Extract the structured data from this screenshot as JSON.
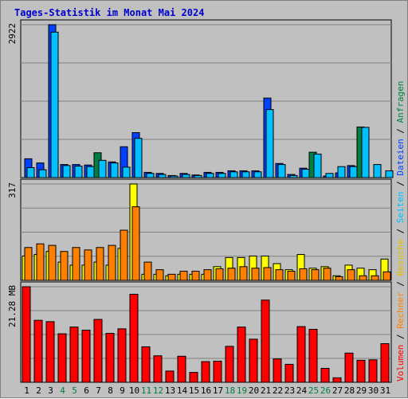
{
  "chart_data": {
    "type": "bar",
    "title": "Tages-Statistik im Monat Mai 2024",
    "x": [
      "1",
      "2",
      "3",
      "4",
      "5",
      "6",
      "7",
      "8",
      "9",
      "10",
      "11",
      "12",
      "13",
      "14",
      "15",
      "16",
      "17",
      "18",
      "19",
      "20",
      "21",
      "22",
      "23",
      "24",
      "25",
      "26",
      "27",
      "28",
      "29",
      "30",
      "31"
    ],
    "weekend_days": [
      "4",
      "5",
      "11",
      "12",
      "18",
      "19",
      "25",
      "26"
    ],
    "panels": [
      {
        "id": "top",
        "ymax_label": "2922",
        "ymax": 2922,
        "series": [
          {
            "name": "Anfragen",
            "color": "#008040",
            "values": [
              0,
              0,
              0,
              0,
              0,
              0,
              475,
              0,
              0,
              0,
              0,
              0,
              0,
              0,
              0,
              0,
              0,
              0,
              0,
              0,
              0,
              0,
              0,
              0,
              485,
              0,
              0,
              0,
              967,
              0,
              0
            ]
          },
          {
            "name": "Dateien",
            "color": "#0040ff",
            "values": [
              360,
              280,
              2922,
              250,
              250,
              240,
              0,
              300,
              590,
              860,
              100,
              80,
              40,
              80,
              50,
              100,
              100,
              130,
              130,
              130,
              1520,
              270,
              60,
              180,
              0,
              30,
              90,
              230,
              0,
              0,
              0
            ]
          },
          {
            "name": "Seiten",
            "color": "#00c0ff",
            "values": [
              190,
              150,
              2780,
              230,
              220,
              210,
              330,
              280,
              200,
              750,
              80,
              60,
              30,
              60,
              40,
              80,
              80,
              110,
              110,
              110,
              1300,
              250,
              40,
              160,
              450,
              80,
              210,
              210,
              960,
              250,
              130
            ]
          }
        ]
      },
      {
        "id": "middle",
        "ymax_label": "317",
        "ymax": 317,
        "series": [
          {
            "name": "Besuche",
            "color": "#ffff00",
            "values": [
              80,
              85,
              95,
              60,
              50,
              50,
              60,
              50,
              105,
              317,
              20,
              20,
              15,
              20,
              20,
              20,
              45,
              75,
              75,
              80,
              80,
              55,
              35,
              85,
              40,
              45,
              15,
              50,
              40,
              35,
              70
            ]
          },
          {
            "name": "Rechner",
            "color": "#ff8000",
            "values": [
              108,
              120,
              115,
              95,
              108,
              100,
              108,
              115,
              165,
              242,
              60,
              35,
              20,
              30,
              30,
              35,
              38,
              40,
              45,
              40,
              42,
              35,
              30,
              38,
              35,
              40,
              12,
              35,
              15,
              15,
              28
            ]
          }
        ]
      },
      {
        "id": "bottom",
        "ymax_label": "21.28 MB",
        "ymax": 21.28,
        "series": [
          {
            "name": "Volumen",
            "color": "#ff0000",
            "values": [
              21.28,
              13.8,
              13.5,
              10.8,
              12.3,
              11.6,
              14.0,
              10.9,
              11.9,
              19.6,
              7.9,
              5.9,
              2.5,
              5.8,
              2.2,
              4.6,
              4.7,
              8.0,
              12.3,
              9.6,
              18.3,
              5.2,
              4.0,
              12.4,
              11.8,
              3.1,
              1.0,
              6.5,
              4.9,
              5.0,
              8.6
            ]
          }
        ]
      }
    ],
    "legend_right": [
      "Volumen",
      "/",
      "Rechner",
      "/",
      "Besuche",
      "/",
      "Seiten",
      "/",
      "Dateien",
      "/",
      "Anfragen"
    ],
    "legend_colors": [
      "#ff0000",
      "#000000",
      "#ff8000",
      "#000000",
      "#e0c000",
      "#000000",
      "#00c0ff",
      "#000000",
      "#0040ff",
      "#000000",
      "#008040"
    ],
    "grid": true
  }
}
